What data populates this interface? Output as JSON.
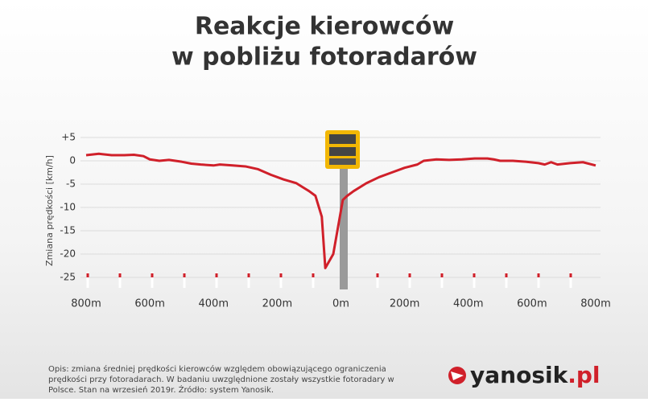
{
  "chart_data": {
    "type": "line",
    "title": [
      "Reakcje kierowców",
      "w pobliżu fotoradarów"
    ],
    "ylabel": "Zmiana prędkości [km/h]",
    "x": [
      -800,
      -760,
      -720,
      -680,
      -650,
      -620,
      -600,
      -570,
      -540,
      -500,
      -470,
      -440,
      -400,
      -380,
      -340,
      -300,
      -260,
      -220,
      -180,
      -140,
      -100,
      -80,
      -60,
      -49,
      -24,
      6,
      20,
      40,
      80,
      120,
      160,
      200,
      240,
      260,
      300,
      340,
      380,
      420,
      460,
      480,
      500,
      540,
      580,
      620,
      640,
      660,
      680,
      720,
      760,
      800
    ],
    "series": [
      {
        "name": "Zmiana prędkości",
        "color": "#d0202a",
        "values": [
          1.2,
          1.5,
          1.2,
          1.2,
          1.3,
          1.0,
          0.3,
          0,
          0.2,
          -0.2,
          -0.6,
          -0.8,
          -1.0,
          -0.8,
          -1.0,
          -1.2,
          -1.8,
          -3.0,
          -4.0,
          -4.8,
          -6.5,
          -7.5,
          -12,
          -23,
          -20,
          -8.4,
          -7.5,
          -6.5,
          -4.8,
          -3.5,
          -2.5,
          -1.5,
          -0.8,
          0,
          0.3,
          0.2,
          0.3,
          0.5,
          0.5,
          0.3,
          0,
          0,
          -0.2,
          -0.5,
          -0.8,
          -0.3,
          -0.8,
          -0.5,
          -0.3,
          -1.0
        ]
      }
    ],
    "xlim": [
      -800,
      800
    ],
    "xticks": [
      {
        "value": -800,
        "label": "800m"
      },
      {
        "value": -600,
        "label": "600m"
      },
      {
        "value": -400,
        "label": "400m"
      },
      {
        "value": -200,
        "label": "200m"
      },
      {
        "value": 0,
        "label": "0m"
      },
      {
        "value": 200,
        "label": "200m"
      },
      {
        "value": 400,
        "label": "400m"
      },
      {
        "value": 600,
        "label": "600m"
      },
      {
        "value": 800,
        "label": "800m"
      }
    ],
    "ylim": [
      -25,
      5
    ],
    "yticks": [
      {
        "value": 5,
        "label": "+5"
      },
      0,
      -5,
      -10,
      -15,
      -20,
      -25
    ],
    "grid": true
  },
  "footer": {
    "note": [
      "Opis: zmiana średniej prędkości kierowców względem obowiązującego ograniczenia",
      "prędkości przy fotoradarach. W badaniu uwzględnione zostały wszystkie fotoradary w",
      "Polsce. Stan na wrzesień 2019r. Źródło: system Yanosik."
    ],
    "logo": "yanosik",
    "logo_suffix": ".pl"
  }
}
